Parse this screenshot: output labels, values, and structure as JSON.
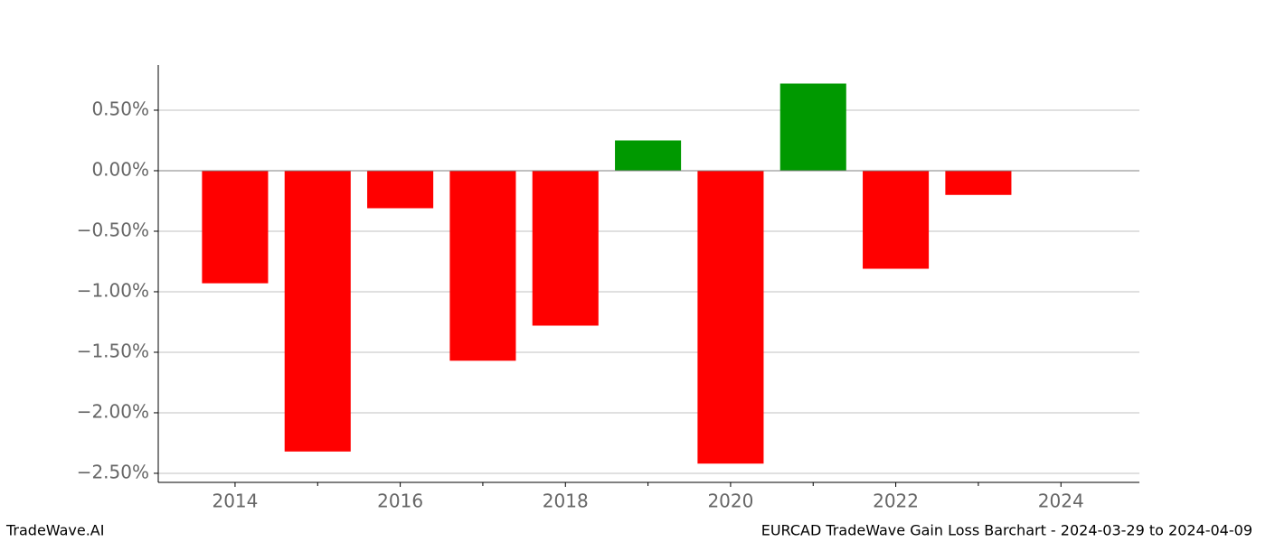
{
  "chart_data": {
    "type": "bar",
    "title": "EURCAD TradeWave Gain Loss Barchart - 2024-03-29 to 2024-04-09",
    "brand": "TradeWave.AI",
    "x": [
      2014,
      2015,
      2016,
      2017,
      2018,
      2019,
      2020,
      2021,
      2022,
      2023
    ],
    "values": [
      -0.93,
      -2.32,
      -0.31,
      -1.57,
      -1.28,
      0.25,
      -2.42,
      0.72,
      -0.81,
      -0.2
    ],
    "positive_color": "#009900",
    "negative_color": "#ff0000",
    "xlim": [
      2013.07,
      2024.95
    ],
    "xticks": [
      2014,
      2016,
      2018,
      2020,
      2022,
      2024
    ],
    "xticks_minor": [
      2015,
      2017,
      2019,
      2021,
      2023
    ],
    "ylim": [
      -2.575,
      0.873
    ],
    "yticks": [
      {
        "value": 0.5,
        "label": "0.50%"
      },
      {
        "value": 0,
        "label": "0.00%"
      },
      {
        "value": -0.5,
        "label": "−0.50%"
      },
      {
        "value": -1,
        "label": "−1.00%"
      },
      {
        "value": -1.5,
        "label": "−1.50%"
      },
      {
        "value": -2,
        "label": "−2.00%"
      },
      {
        "value": -2.5,
        "label": "−2.50%"
      }
    ],
    "grid": true
  }
}
